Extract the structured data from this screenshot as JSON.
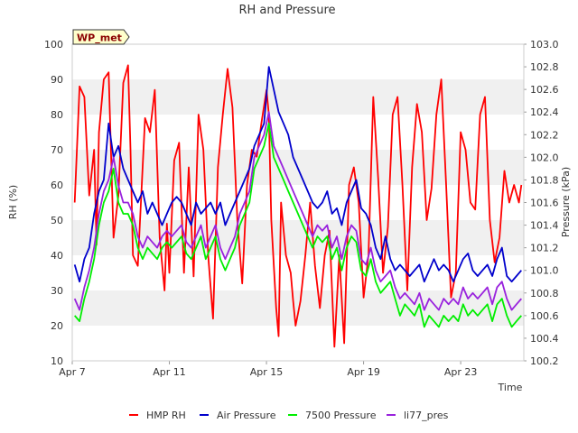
{
  "chart_data": {
    "type": "line",
    "title": "RH and Pressure",
    "badge": "WP_met",
    "xlabel": "Time",
    "ylabel_left": "RH (%)",
    "ylabel_right": "Pressure (kPa)",
    "x_range_days": [
      0,
      18.6
    ],
    "xticks": [
      {
        "day": 0,
        "label": "Apr 7"
      },
      {
        "day": 4,
        "label": "Apr 11"
      },
      {
        "day": 8,
        "label": "Apr 15"
      },
      {
        "day": 12,
        "label": "Apr 19"
      },
      {
        "day": 16,
        "label": "Apr 23"
      }
    ],
    "ylim_left": [
      10,
      100
    ],
    "yticks_left": [
      10,
      20,
      30,
      40,
      50,
      60,
      70,
      80,
      90,
      100
    ],
    "ylim_right": [
      100.2,
      103.0
    ],
    "yticks_right": [
      100.2,
      100.4,
      100.6,
      100.8,
      101.0,
      101.2,
      101.4,
      101.6,
      101.8,
      102.0,
      102.2,
      102.4,
      102.6,
      102.8,
      103.0
    ],
    "grid": "horizontal bands",
    "legend_position": "bottom",
    "colors": {
      "band": "#f0f0f0",
      "axis": "#cccccc",
      "badge_bg": "#ffffcc",
      "badge_text": "#8b0000"
    },
    "series": [
      {
        "name": "HMP RH",
        "axis": "left",
        "color": "#ff0000",
        "x": [
          0.1,
          0.3,
          0.5,
          0.7,
          0.9,
          1.0,
          1.1,
          1.3,
          1.5,
          1.7,
          1.9,
          2.1,
          2.3,
          2.4,
          2.5,
          2.7,
          3.0,
          3.2,
          3.4,
          3.6,
          3.8,
          3.9,
          4.0,
          4.2,
          4.4,
          4.6,
          4.8,
          5.0,
          5.2,
          5.4,
          5.6,
          5.8,
          6.0,
          6.2,
          6.4,
          6.6,
          6.8,
          7.0,
          7.2,
          7.4,
          7.6,
          7.8,
          8.0,
          8.1,
          8.2,
          8.4,
          8.5,
          8.6,
          8.8,
          9.0,
          9.1,
          9.2,
          9.4,
          9.6,
          9.8,
          10.0,
          10.2,
          10.4,
          10.6,
          10.8,
          11.0,
          11.2,
          11.4,
          11.6,
          11.8,
          12.0,
          12.2,
          12.4,
          12.6,
          12.8,
          13.0,
          13.2,
          13.4,
          13.6,
          13.8,
          14.0,
          14.2,
          14.4,
          14.6,
          14.8,
          15.0,
          15.2,
          15.4,
          15.6,
          15.8,
          16.0,
          16.2,
          16.4,
          16.6,
          16.8,
          17.0,
          17.2,
          17.4,
          17.6,
          17.8,
          18.0,
          18.2,
          18.4,
          18.5
        ],
        "y": [
          55,
          88,
          85,
          57,
          70,
          43,
          75,
          90,
          92,
          45,
          57,
          89,
          94,
          70,
          40,
          37,
          79,
          75,
          87,
          45,
          30,
          49,
          35,
          67,
          72,
          35,
          65,
          34,
          80,
          70,
          40,
          22,
          65,
          80,
          93,
          82,
          50,
          32,
          60,
          70,
          68,
          78,
          87,
          80,
          50,
          25,
          17,
          55,
          40,
          35,
          27,
          20,
          27,
          40,
          55,
          37,
          25,
          40,
          47,
          14,
          40,
          15,
          60,
          65,
          55,
          28,
          40,
          85,
          62,
          35,
          48,
          80,
          85,
          60,
          30,
          65,
          83,
          75,
          50,
          59,
          80,
          90,
          60,
          28,
          35,
          75,
          70,
          55,
          53,
          80,
          85,
          50,
          38,
          45,
          64,
          55,
          60,
          55,
          60
        ]
      },
      {
        "name": "Air Pressure",
        "axis": "right",
        "color": "#0000cc",
        "x": [
          0.1,
          0.3,
          0.5,
          0.7,
          0.9,
          1.1,
          1.3,
          1.5,
          1.7,
          1.9,
          2.1,
          2.3,
          2.5,
          2.7,
          2.9,
          3.1,
          3.3,
          3.5,
          3.7,
          3.9,
          4.1,
          4.3,
          4.5,
          4.7,
          4.9,
          5.1,
          5.3,
          5.5,
          5.7,
          5.9,
          6.1,
          6.3,
          6.5,
          6.7,
          6.9,
          7.1,
          7.3,
          7.5,
          7.7,
          7.9,
          8.1,
          8.3,
          8.5,
          8.7,
          8.9,
          9.1,
          9.3,
          9.5,
          9.7,
          9.9,
          10.1,
          10.3,
          10.5,
          10.7,
          10.9,
          11.1,
          11.3,
          11.5,
          11.7,
          11.9,
          12.1,
          12.3,
          12.5,
          12.7,
          12.9,
          13.1,
          13.3,
          13.5,
          13.7,
          13.9,
          14.1,
          14.3,
          14.5,
          14.7,
          14.9,
          15.1,
          15.3,
          15.5,
          15.7,
          15.9,
          16.1,
          16.3,
          16.5,
          16.7,
          16.9,
          17.1,
          17.3,
          17.5,
          17.7,
          17.9,
          18.1,
          18.3,
          18.5
        ],
        "y": [
          101.05,
          100.9,
          101.1,
          101.2,
          101.5,
          101.7,
          101.8,
          102.3,
          102.0,
          102.1,
          101.9,
          101.8,
          101.7,
          101.6,
          101.7,
          101.5,
          101.6,
          101.5,
          101.4,
          101.5,
          101.6,
          101.65,
          101.6,
          101.5,
          101.4,
          101.6,
          101.5,
          101.55,
          101.6,
          101.5,
          101.6,
          101.4,
          101.5,
          101.6,
          101.7,
          101.8,
          101.9,
          102.1,
          102.2,
          102.3,
          102.8,
          102.6,
          102.4,
          102.3,
          102.2,
          102.0,
          101.9,
          101.8,
          101.7,
          101.6,
          101.55,
          101.6,
          101.7,
          101.5,
          101.55,
          101.4,
          101.6,
          101.7,
          101.8,
          101.55,
          101.5,
          101.4,
          101.2,
          101.1,
          101.3,
          101.1,
          101.0,
          101.05,
          101.0,
          100.95,
          101.0,
          101.05,
          100.9,
          101.0,
          101.1,
          101.0,
          101.05,
          101.0,
          100.9,
          101.0,
          101.1,
          101.15,
          101.0,
          100.95,
          101.0,
          101.05,
          100.95,
          101.1,
          101.2,
          100.95,
          100.9,
          100.95,
          101.0
        ]
      },
      {
        "name": "7500 Pressure",
        "axis": "right",
        "color": "#00ee00",
        "x": [
          0.1,
          0.3,
          0.5,
          0.7,
          0.9,
          1.1,
          1.3,
          1.5,
          1.7,
          1.9,
          2.1,
          2.3,
          2.5,
          2.7,
          2.9,
          3.1,
          3.3,
          3.5,
          3.7,
          3.9,
          4.1,
          4.3,
          4.5,
          4.7,
          4.9,
          5.1,
          5.3,
          5.5,
          5.7,
          5.9,
          6.1,
          6.3,
          6.5,
          6.7,
          6.9,
          7.1,
          7.3,
          7.5,
          7.7,
          7.9,
          8.1,
          8.3,
          8.5,
          8.7,
          8.9,
          9.1,
          9.3,
          9.5,
          9.7,
          9.9,
          10.1,
          10.3,
          10.5,
          10.7,
          10.9,
          11.1,
          11.3,
          11.5,
          11.7,
          11.9,
          12.1,
          12.3,
          12.5,
          12.7,
          12.9,
          13.1,
          13.3,
          13.5,
          13.7,
          13.9,
          14.1,
          14.3,
          14.5,
          14.7,
          14.9,
          15.1,
          15.3,
          15.5,
          15.7,
          15.9,
          16.1,
          16.3,
          16.5,
          16.7,
          16.9,
          17.1,
          17.3,
          17.5,
          17.7,
          17.9,
          18.1,
          18.3,
          18.5
        ],
        "y": [
          100.6,
          100.55,
          100.75,
          100.9,
          101.1,
          101.4,
          101.6,
          101.7,
          101.9,
          101.6,
          101.5,
          101.5,
          101.4,
          101.2,
          101.1,
          101.2,
          101.15,
          101.1,
          101.2,
          101.25,
          101.2,
          101.25,
          101.3,
          101.15,
          101.1,
          101.2,
          101.3,
          101.1,
          101.2,
          101.3,
          101.1,
          101.0,
          101.1,
          101.2,
          101.4,
          101.5,
          101.6,
          101.9,
          102.0,
          102.1,
          102.3,
          102.0,
          101.9,
          101.8,
          101.7,
          101.6,
          101.5,
          101.4,
          101.3,
          101.2,
          101.3,
          101.25,
          101.3,
          101.1,
          101.2,
          101.0,
          101.2,
          101.3,
          101.25,
          101.0,
          100.95,
          101.1,
          100.9,
          100.8,
          100.85,
          100.9,
          100.75,
          100.6,
          100.7,
          100.65,
          100.6,
          100.7,
          100.5,
          100.6,
          100.55,
          100.5,
          100.6,
          100.55,
          100.6,
          100.55,
          100.7,
          100.6,
          100.65,
          100.6,
          100.65,
          100.7,
          100.55,
          100.7,
          100.75,
          100.6,
          100.5,
          100.55,
          100.6
        ]
      },
      {
        "name": "li77_pres",
        "axis": "right",
        "color": "#9922dd",
        "x": [
          0.1,
          0.3,
          0.5,
          0.7,
          0.9,
          1.1,
          1.3,
          1.5,
          1.7,
          1.9,
          2.1,
          2.3,
          2.5,
          2.7,
          2.9,
          3.1,
          3.3,
          3.5,
          3.7,
          3.9,
          4.1,
          4.3,
          4.5,
          4.7,
          4.9,
          5.1,
          5.3,
          5.5,
          5.7,
          5.9,
          6.1,
          6.3,
          6.5,
          6.7,
          6.9,
          7.1,
          7.3,
          7.5,
          7.7,
          7.9,
          8.1,
          8.3,
          8.5,
          8.7,
          8.9,
          9.1,
          9.3,
          9.5,
          9.7,
          9.9,
          10.1,
          10.3,
          10.5,
          10.7,
          10.9,
          11.1,
          11.3,
          11.5,
          11.7,
          11.9,
          12.1,
          12.3,
          12.5,
          12.7,
          12.9,
          13.1,
          13.3,
          13.5,
          13.7,
          13.9,
          14.1,
          14.3,
          14.5,
          14.7,
          14.9,
          15.1,
          15.3,
          15.5,
          15.7,
          15.9,
          16.1,
          16.3,
          16.5,
          16.7,
          16.9,
          17.1,
          17.3,
          17.5,
          17.7,
          17.9,
          18.1,
          18.3,
          18.5
        ],
        "y": [
          100.75,
          100.65,
          100.85,
          101.0,
          101.2,
          101.5,
          101.7,
          101.8,
          102.0,
          101.75,
          101.6,
          101.6,
          101.5,
          101.3,
          101.2,
          101.3,
          101.25,
          101.2,
          101.3,
          101.35,
          101.3,
          101.35,
          101.4,
          101.25,
          101.2,
          101.3,
          101.4,
          101.2,
          101.3,
          101.4,
          101.2,
          101.1,
          101.2,
          101.3,
          101.5,
          101.6,
          101.7,
          102.0,
          102.1,
          102.2,
          102.4,
          102.1,
          102.0,
          101.9,
          101.8,
          101.7,
          101.6,
          101.5,
          101.4,
          101.3,
          101.4,
          101.35,
          101.4,
          101.2,
          101.3,
          101.1,
          101.3,
          101.4,
          101.35,
          101.1,
          101.05,
          101.2,
          101.0,
          100.9,
          100.95,
          101.0,
          100.85,
          100.75,
          100.8,
          100.75,
          100.7,
          100.8,
          100.65,
          100.75,
          100.7,
          100.65,
          100.75,
          100.7,
          100.75,
          100.7,
          100.85,
          100.75,
          100.8,
          100.75,
          100.8,
          100.85,
          100.7,
          100.85,
          100.9,
          100.75,
          100.65,
          100.7,
          100.75
        ]
      }
    ]
  }
}
